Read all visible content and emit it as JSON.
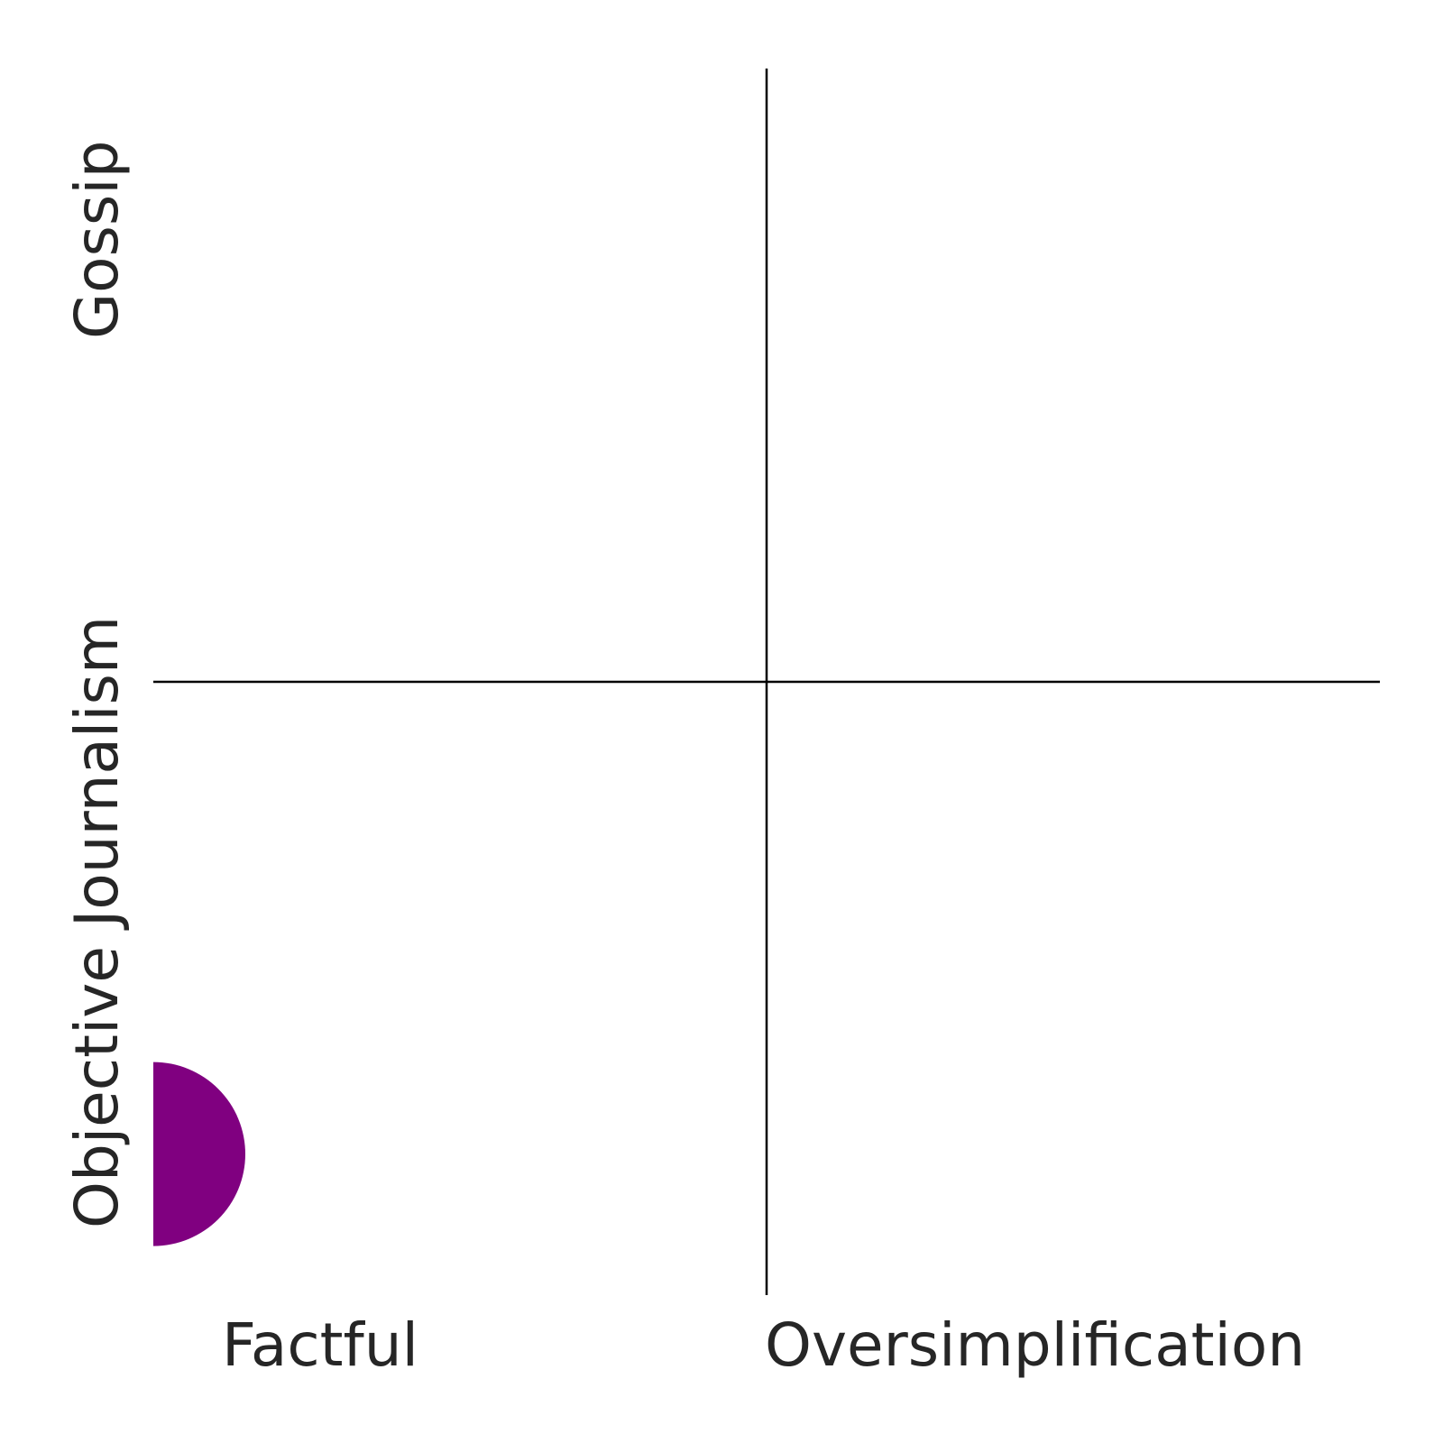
{
  "chart_data": {
    "type": "scatter",
    "title": "",
    "xlabel": "",
    "ylabel": "",
    "xlim": [
      0,
      1
    ],
    "ylim": [
      0,
      1
    ],
    "grid": false,
    "x_labels": [
      "Factful",
      "Oversimplification"
    ],
    "y_labels": [
      "Objective Journalism",
      "Gossip"
    ],
    "dividers": {
      "x": 0.5,
      "y": 0.5
    },
    "points": [
      {
        "x": 0.0,
        "y": 0.115,
        "radius": 0.075,
        "color": "#800080"
      }
    ]
  }
}
